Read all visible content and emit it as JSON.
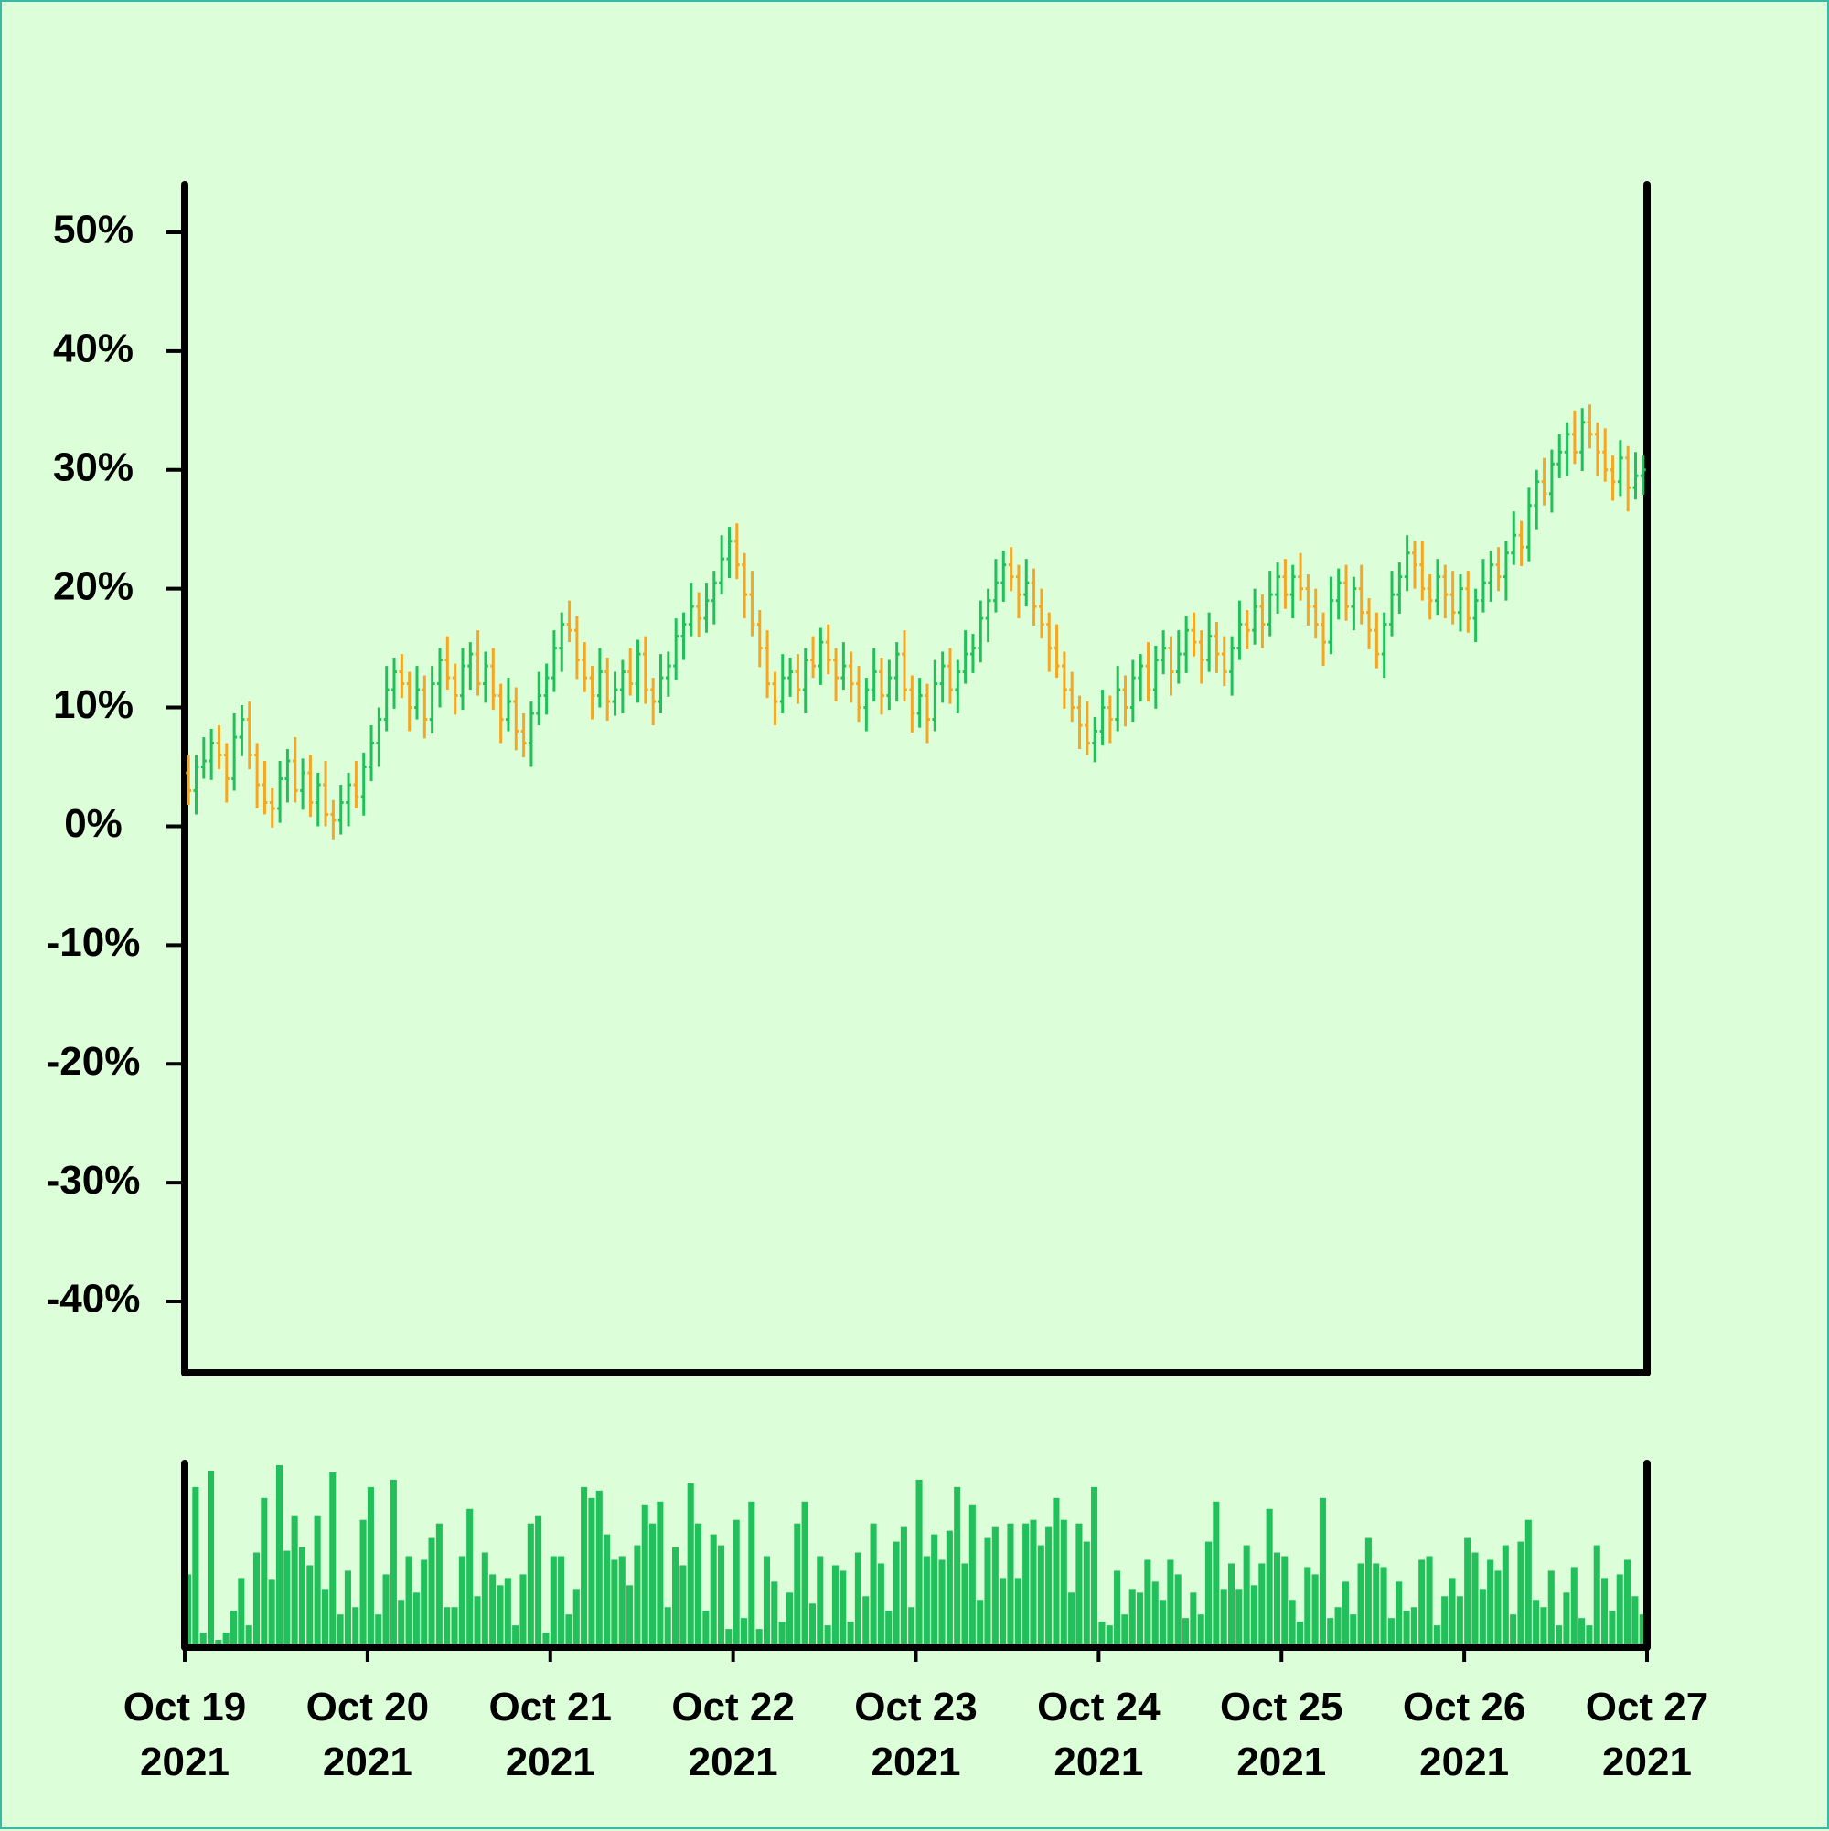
{
  "chart_data": {
    "type": "ohlc",
    "up_color": "#22c05a",
    "down_color": "#f5a623",
    "volume_color": "#22c05a",
    "ylim": [
      -46,
      54
    ],
    "yticks": [
      {
        "value": -40,
        "label": "-40%"
      },
      {
        "value": -30,
        "label": "-30%"
      },
      {
        "value": -20,
        "label": "-20%"
      },
      {
        "value": -10,
        "label": "-10%"
      },
      {
        "value": 0,
        "label": "0%"
      },
      {
        "value": 10,
        "label": "10%"
      },
      {
        "value": 20,
        "label": "20%"
      },
      {
        "value": 30,
        "label": "30%"
      },
      {
        "value": 40,
        "label": "40%"
      },
      {
        "value": 50,
        "label": "50%"
      }
    ],
    "xlim": [
      0,
      192
    ],
    "xticks": [
      {
        "value": 0,
        "label": "Oct 19\n2021"
      },
      {
        "value": 24,
        "label": "Oct 20\n2021"
      },
      {
        "value": 48,
        "label": "Oct 21\n2021"
      },
      {
        "value": 72,
        "label": "Oct 22\n2021"
      },
      {
        "value": 96,
        "label": "Oct 23\n2021"
      },
      {
        "value": 120,
        "label": "Oct 24\n2021"
      },
      {
        "value": 144,
        "label": "Oct 25\n2021"
      },
      {
        "value": 168,
        "label": "Oct 26\n2021"
      },
      {
        "value": 192,
        "label": "Oct 27\n2021"
      }
    ],
    "open": [
      4.5,
      3.0,
      5.0,
      5.5,
      7.0,
      6.0,
      4.0,
      7.5,
      9.0,
      6.0,
      3.5,
      2.0,
      1.5,
      4.0,
      5.5,
      3.0,
      4.5,
      2.0,
      3.5,
      1.0,
      0.5,
      2.0,
      3.5,
      2.5,
      5.0,
      7.0,
      9.0,
      11.5,
      13.0,
      12.0,
      10.0,
      11.5,
      9.0,
      12.0,
      14.0,
      12.5,
      11.0,
      13.5,
      14.5,
      12.0,
      13.5,
      11.0,
      9.0,
      10.5,
      8.0,
      7.0,
      9.5,
      11.0,
      12.5,
      15.0,
      17.0,
      16.5,
      14.0,
      12.5,
      11.0,
      13.0,
      10.5,
      11.5,
      13.0,
      12.0,
      14.5,
      11.5,
      10.5,
      12.5,
      13.5,
      16.0,
      17.0,
      18.5,
      17.5,
      19.0,
      20.5,
      22.5,
      24.0,
      22.0,
      19.5,
      17.0,
      15.0,
      12.0,
      10.5,
      12.5,
      13.0,
      11.5,
      14.0,
      13.5,
      15.5,
      14.0,
      12.5,
      13.5,
      12.0,
      10.0,
      11.5,
      13.0,
      11.0,
      12.5,
      14.5,
      11.5,
      9.5,
      11.0,
      9.0,
      12.0,
      13.5,
      11.5,
      13.0,
      14.5,
      15.0,
      17.5,
      19.0,
      20.5,
      22.0,
      21.0,
      19.5,
      20.5,
      18.5,
      17.0,
      15.0,
      13.5,
      11.5,
      10.0,
      8.5,
      7.0,
      8.0,
      10.0,
      9.0,
      11.5,
      10.0,
      12.5,
      13.5,
      11.5,
      14.0,
      15.0,
      13.0,
      14.5,
      16.5,
      15.5,
      14.0,
      16.0,
      14.5,
      13.0,
      15.0,
      17.0,
      16.5,
      18.5,
      17.0,
      19.5,
      21.0,
      19.5,
      21.0,
      20.0,
      18.5,
      17.0,
      15.5,
      19.0,
      20.5,
      18.5,
      20.0,
      18.0,
      16.5,
      14.5,
      17.0,
      19.5,
      21.0,
      23.0,
      22.0,
      20.0,
      19.0,
      21.0,
      19.5,
      18.0,
      20.0,
      17.5,
      19.0,
      20.5,
      22.0,
      21.0,
      23.0,
      24.5,
      23.5,
      27.0,
      29.0,
      28.0,
      30.5,
      31.5,
      33.0,
      31.5,
      34.0,
      33.0,
      31.5,
      30.0,
      29.0,
      31.0,
      28.5,
      29.5
    ],
    "high": [
      6.0,
      6.0,
      7.5,
      8.2,
      8.5,
      7.0,
      9.5,
      10.2,
      10.5,
      7.0,
      5.5,
      3.2,
      5.5,
      6.5,
      7.5,
      5.7,
      6.0,
      4.5,
      5.5,
      2.2,
      3.5,
      4.5,
      5.5,
      6.2,
      8.5,
      10.0,
      13.5,
      14.2,
      14.5,
      13.0,
      13.5,
      12.7,
      13.5,
      15.0,
      16.0,
      13.7,
      15.0,
      15.5,
      16.5,
      14.7,
      15.0,
      12.0,
      12.5,
      11.7,
      9.5,
      10.5,
      13.0,
      13.7,
      16.5,
      18.0,
      19.0,
      17.7,
      15.5,
      13.5,
      15.0,
      14.2,
      13.0,
      14.0,
      15.0,
      15.7,
      16.0,
      12.5,
      14.5,
      14.7,
      17.5,
      18.0,
      20.5,
      19.7,
      20.5,
      21.5,
      24.5,
      25.2,
      25.5,
      23.0,
      21.5,
      18.2,
      16.5,
      13.0,
      14.5,
      14.2,
      14.5,
      15.0,
      16.0,
      16.7,
      17.0,
      15.0,
      15.5,
      14.7,
      13.5,
      12.5,
      15.0,
      14.2,
      14.0,
      15.5,
      16.5,
      12.7,
      12.5,
      12.0,
      14.0,
      14.7,
      15.0,
      14.0,
      16.5,
      16.2,
      19.0,
      20.0,
      22.5,
      23.2,
      23.5,
      22.0,
      22.5,
      21.7,
      20.0,
      18.0,
      17.0,
      14.7,
      13.0,
      11.0,
      10.5,
      9.2,
      11.5,
      11.0,
      13.5,
      12.7,
      14.0,
      14.5,
      15.5,
      15.2,
      16.5,
      16.0,
      16.5,
      17.7,
      18.0,
      16.5,
      18.0,
      17.2,
      16.0,
      16.0,
      19.0,
      18.2,
      20.0,
      19.5,
      21.5,
      22.2,
      22.5,
      22.0,
      23.0,
      21.2,
      20.0,
      18.0,
      21.0,
      21.7,
      22.0,
      21.0,
      22.0,
      19.2,
      18.0,
      18.0,
      21.5,
      22.2,
      24.5,
      24.0,
      24.0,
      21.2,
      22.5,
      22.0,
      21.5,
      21.2,
      21.5,
      20.0,
      22.5,
      23.2,
      23.5,
      24.0,
      26.5,
      25.7,
      28.5,
      30.0,
      31.0,
      31.7,
      33.0,
      34.0,
      35.0,
      35.2,
      35.5,
      34.0,
      33.5,
      31.2,
      32.5,
      32.0,
      31.5,
      31.2
    ],
    "low": [
      1.8,
      1.0,
      4.0,
      3.9,
      4.8,
      2.0,
      3.0,
      5.9,
      4.8,
      1.5,
      1.0,
      -0.1,
      0.3,
      2.0,
      2.0,
      1.4,
      0.8,
      0.0,
      0.0,
      -1.1,
      -0.7,
      0.0,
      1.5,
      0.9,
      3.8,
      5.0,
      8.0,
      9.9,
      10.8,
      8.0,
      9.0,
      7.4,
      7.8,
      10.0,
      11.5,
      9.4,
      9.8,
      11.5,
      11.0,
      10.4,
      9.8,
      7.0,
      8.0,
      6.4,
      5.8,
      5.0,
      8.5,
      9.4,
      11.3,
      13.0,
      15.5,
      12.4,
      11.3,
      9.0,
      10.0,
      8.9,
      9.3,
      9.5,
      11.0,
      10.4,
      10.3,
      8.5,
      9.5,
      10.9,
      12.3,
      14.0,
      16.0,
      15.9,
      16.3,
      17.0,
      19.5,
      20.9,
      20.8,
      17.5,
      16.0,
      13.4,
      10.8,
      8.5,
      9.5,
      10.9,
      10.3,
      9.5,
      12.5,
      11.9,
      12.8,
      10.5,
      11.5,
      10.4,
      8.8,
      8.0,
      10.5,
      9.4,
      9.8,
      10.5,
      10.5,
      7.9,
      8.3,
      7.0,
      8.0,
      10.4,
      10.3,
      9.5,
      12.0,
      12.9,
      13.8,
      15.5,
      18.0,
      18.9,
      19.8,
      17.5,
      18.5,
      16.9,
      15.8,
      13.0,
      12.5,
      9.9,
      8.8,
      6.5,
      6.0,
      5.4,
      6.8,
      7.0,
      8.0,
      8.4,
      8.8,
      10.5,
      10.5,
      9.9,
      12.8,
      11.0,
      12.0,
      12.9,
      14.3,
      12.0,
      13.0,
      12.9,
      11.8,
      11.0,
      14.0,
      14.9,
      15.3,
      15.0,
      16.0,
      17.9,
      18.3,
      17.5,
      19.0,
      16.9,
      15.8,
      13.5,
      14.5,
      17.4,
      17.3,
      16.5,
      17.0,
      14.9,
      13.3,
      12.5,
      16.0,
      17.9,
      19.8,
      20.0,
      19.0,
      17.4,
      17.8,
      17.5,
      17.0,
      16.4,
      16.3,
      15.5,
      18.0,
      18.9,
      19.8,
      19.0,
      22.0,
      21.9,
      22.3,
      25.0,
      27.0,
      26.4,
      29.3,
      29.5,
      30.5,
      29.9,
      31.8,
      29.5,
      29.0,
      27.4,
      27.8,
      26.5,
      27.5,
      27.9
    ],
    "close": [
      3.0,
      5.0,
      5.5,
      7.0,
      6.0,
      4.0,
      7.5,
      9.0,
      6.0,
      3.5,
      2.0,
      1.5,
      4.0,
      5.5,
      3.0,
      4.5,
      2.0,
      3.5,
      1.0,
      0.5,
      2.0,
      3.5,
      2.5,
      5.0,
      7.0,
      9.0,
      11.5,
      13.0,
      12.0,
      10.0,
      11.5,
      9.0,
      12.0,
      14.0,
      12.5,
      11.0,
      13.5,
      14.5,
      12.0,
      13.5,
      11.0,
      9.0,
      10.5,
      8.0,
      7.0,
      9.5,
      11.0,
      12.5,
      15.0,
      17.0,
      16.5,
      14.0,
      12.5,
      11.0,
      13.0,
      10.5,
      11.5,
      13.0,
      12.0,
      14.5,
      11.5,
      10.5,
      12.5,
      13.5,
      16.0,
      17.0,
      18.5,
      17.5,
      19.0,
      20.5,
      22.5,
      24.0,
      22.0,
      19.5,
      17.0,
      15.0,
      12.0,
      10.5,
      12.5,
      13.0,
      11.5,
      14.0,
      13.5,
      15.5,
      14.0,
      12.5,
      13.5,
      12.0,
      10.0,
      11.5,
      13.0,
      11.0,
      12.5,
      14.5,
      11.5,
      9.5,
      11.0,
      9.0,
      12.0,
      13.5,
      11.5,
      13.0,
      14.5,
      15.0,
      17.5,
      19.0,
      20.5,
      22.0,
      21.0,
      19.5,
      20.5,
      18.5,
      17.0,
      15.0,
      13.5,
      11.5,
      10.0,
      8.5,
      7.0,
      8.0,
      10.0,
      9.0,
      11.5,
      10.0,
      12.5,
      13.5,
      11.5,
      14.0,
      15.0,
      13.0,
      14.5,
      16.5,
      15.5,
      14.0,
      16.0,
      14.5,
      13.0,
      15.0,
      17.0,
      16.5,
      18.5,
      17.0,
      19.5,
      21.0,
      19.5,
      21.0,
      20.0,
      18.5,
      17.0,
      15.5,
      19.0,
      20.5,
      18.5,
      20.0,
      18.0,
      16.5,
      14.5,
      17.0,
      19.5,
      21.0,
      23.0,
      22.0,
      20.0,
      19.0,
      21.0,
      19.5,
      18.0,
      20.0,
      17.5,
      19.0,
      20.5,
      22.0,
      21.0,
      23.0,
      24.5,
      23.5,
      27.0,
      29.0,
      28.0,
      30.5,
      31.5,
      33.0,
      31.5,
      34.0,
      33.0,
      31.5,
      30.0,
      29.0,
      31.0,
      28.5,
      29.5,
      30.0
    ],
    "volume_ylim": [
      0,
      100
    ],
    "volume": [
      40,
      88,
      8,
      97,
      4,
      8,
      20,
      38,
      12,
      52,
      82,
      37,
      100,
      53,
      72,
      55,
      45,
      72,
      32,
      96,
      18,
      42,
      22,
      70,
      88,
      18,
      40,
      92,
      26,
      50,
      30,
      48,
      60,
      68,
      22,
      22,
      50,
      76,
      28,
      52,
      40,
      34,
      38,
      12,
      40,
      68,
      72,
      8,
      50,
      50,
      18,
      32,
      88,
      82,
      86,
      62,
      48,
      50,
      34,
      56,
      78,
      68,
      80,
      22,
      55,
      45,
      90,
      68,
      20,
      62,
      56,
      10,
      70,
      16,
      80,
      10,
      50,
      36,
      14,
      30,
      68,
      80,
      24,
      50,
      12,
      45,
      42,
      14,
      52,
      28,
      68,
      46,
      20,
      58,
      66,
      22,
      92,
      50,
      62,
      48,
      64,
      88,
      46,
      78,
      26,
      60,
      66,
      38,
      68,
      38,
      68,
      70,
      56,
      66,
      82,
      70,
      30,
      68,
      58,
      88,
      14,
      12,
      42,
      18,
      32,
      30,
      48,
      36,
      26,
      48,
      40,
      16,
      30,
      18,
      58,
      80,
      32,
      46,
      32,
      56,
      34,
      46,
      76,
      52,
      50,
      26,
      14,
      44,
      40,
      82,
      16,
      22,
      36,
      18,
      46,
      60,
      46,
      44,
      16,
      36,
      20,
      22,
      48,
      50,
      12,
      28,
      38,
      28,
      60,
      52,
      32,
      48,
      42,
      56,
      18,
      58,
      70,
      26,
      22,
      42,
      12,
      30,
      44,
      16,
      12,
      56,
      38,
      20,
      40,
      48,
      28,
      18
    ]
  }
}
